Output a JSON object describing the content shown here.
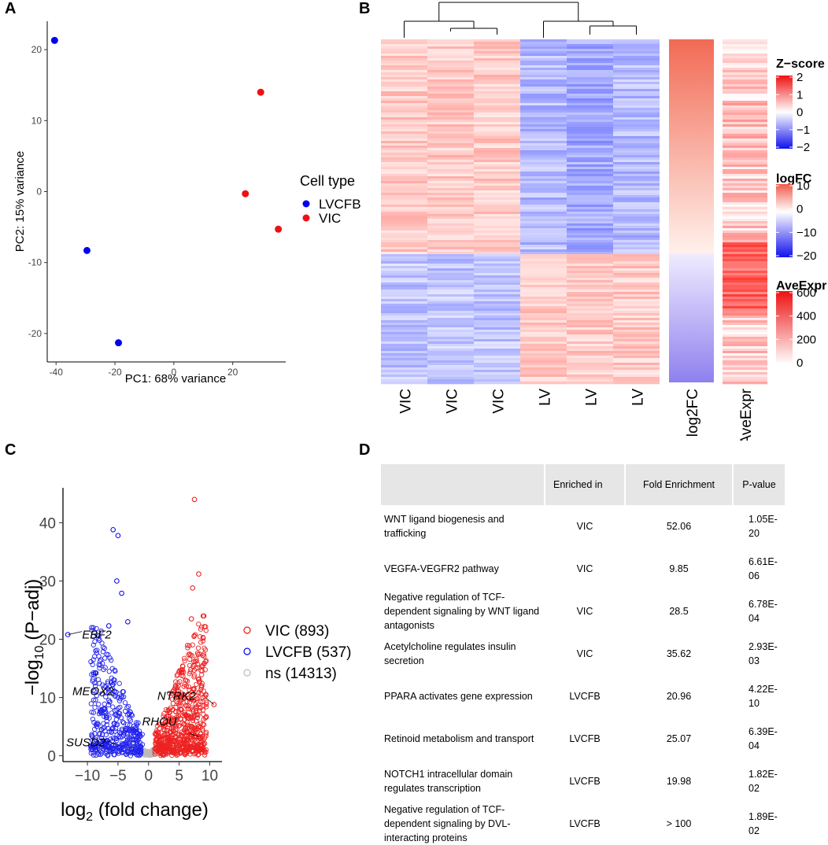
{
  "panel_labels": {
    "a": "A",
    "b": "B",
    "c": "C",
    "d": "D"
  },
  "colors": {
    "lvcfb": "#0000ee",
    "vic": "#ee1111",
    "ns": "#bbbbbb",
    "table_header": "#e6e6e6"
  },
  "chart_data": [
    {
      "id": "A",
      "type": "scatter",
      "title": "",
      "xlabel": "PC1: 68% variance",
      "ylabel": "PC2: 15% variance",
      "xlim": [
        -43,
        38
      ],
      "ylim": [
        -24,
        24
      ],
      "xticks": [
        -40,
        -20,
        0,
        20
      ],
      "yticks": [
        -20,
        -10,
        0,
        10,
        20
      ],
      "legend_title": "Cell type",
      "series": [
        {
          "name": "LVCFB",
          "color": "#0000ee",
          "points": [
            [
              -40.5,
              21.3
            ],
            [
              -29.5,
              -8.3
            ],
            [
              -18.8,
              -21.3
            ]
          ]
        },
        {
          "name": "VIC",
          "color": "#ee1111",
          "points": [
            [
              29.5,
              14.0
            ],
            [
              24.3,
              -0.3
            ],
            [
              35.5,
              -5.3
            ]
          ]
        }
      ]
    },
    {
      "id": "B",
      "type": "heatmap",
      "columns": [
        "VIC",
        "VIC",
        "VIC",
        "LV",
        "LV",
        "LV"
      ],
      "annotation_columns": [
        "log2FC",
        "AveExpr"
      ],
      "legends": [
        {
          "title": "Z−score",
          "ticks": [
            "2",
            "1",
            "0",
            "−1",
            "−2"
          ]
        },
        {
          "title": "logFC",
          "ticks": [
            "10",
            "0",
            "−10",
            "−20"
          ]
        },
        {
          "title": "AveExpr",
          "ticks": [
            "600",
            "400",
            "200",
            "0"
          ]
        }
      ],
      "split_fraction": 0.62
    },
    {
      "id": "C",
      "type": "scatter",
      "subtype": "volcano",
      "xlabel_main": "log",
      "xlabel_sub": "2",
      "xlabel_rest": " (fold change)",
      "ylabel_main": "−log",
      "ylabel_sub": "10",
      "ylabel_rest": " (P−adj)",
      "xlim": [
        -14,
        12
      ],
      "ylim": [
        -1,
        46
      ],
      "xticks": [
        -10,
        -5,
        0,
        5,
        10
      ],
      "xtick_labels": [
        "−10",
        "−5",
        "0",
        "5",
        "10"
      ],
      "yticks": [
        0,
        10,
        20,
        30,
        40
      ],
      "legend": [
        {
          "label": "VIC (893)",
          "color": "#ee1111"
        },
        {
          "label": "LVCFB (537)",
          "color": "#0000ee"
        },
        {
          "label": "ns (14313)",
          "color": "#bbbbbb"
        }
      ],
      "labeled_points": [
        {
          "gene": "EBF2",
          "x": -13.2,
          "y": 20.8,
          "color": "#0000ee"
        },
        {
          "gene": "MEOX2",
          "x": -8.6,
          "y": 14.2,
          "color": "#0000ee"
        },
        {
          "gene": "SUSD2",
          "x": -6.8,
          "y": 2.6,
          "color": "#0000ee"
        },
        {
          "gene": "NTRK2",
          "x": 10.7,
          "y": 8.8,
          "color": "#ee1111"
        },
        {
          "gene": "RHOU",
          "x": 8.2,
          "y": 3.3,
          "color": "#ee1111"
        }
      ],
      "highlight_points": [
        {
          "x": 7.5,
          "y": 44.0,
          "color": "#ee1111"
        },
        {
          "x": 8.2,
          "y": 31.2,
          "color": "#ee1111"
        },
        {
          "x": 7.2,
          "y": 28.8,
          "color": "#ee1111"
        },
        {
          "x": -5.8,
          "y": 38.8,
          "color": "#0000ee"
        },
        {
          "x": -5.0,
          "y": 37.8,
          "color": "#0000ee"
        },
        {
          "x": -5.2,
          "y": 30.0,
          "color": "#0000ee"
        },
        {
          "x": -4.4,
          "y": 27.9,
          "color": "#0000ee"
        },
        {
          "x": -3.4,
          "y": 23.0,
          "color": "#0000ee"
        },
        {
          "x": -6.5,
          "y": 22.3,
          "color": "#0000ee"
        },
        {
          "x": 7.0,
          "y": 23.5,
          "color": "#ee1111"
        }
      ]
    }
  ],
  "table": {
    "headers": [
      "",
      "Enriched in",
      "Fold Enrichment",
      "P-value"
    ],
    "rows": [
      [
        "WNT ligand biogenesis and trafficking",
        "VIC",
        "52.06",
        "1.05E-20"
      ],
      [
        "VEGFA-VEGFR2 pathway",
        "VIC",
        "9.85",
        "6.61E-06"
      ],
      [
        "Negative regulation of TCF-dependent signaling by WNT ligand antagonists",
        "VIC",
        "28.5",
        "6.78E-04"
      ],
      [
        "Acetylcholine regulates insulin secretion",
        "VIC",
        "35.62",
        "2.93E-03"
      ],
      [
        "PPARA activates gene expression",
        "LVCFB",
        "20.96",
        "4.22E-10"
      ],
      [
        "Retinoid metabolism and transport",
        "LVCFB",
        "25.07",
        "6.39E-04"
      ],
      [
        "NOTCH1 intracellular domain regulates transcription",
        "LVCFB",
        "19.98",
        "1.82E-02"
      ],
      [
        "Negative regulation of TCF-dependent signaling by DVL-interacting proteins",
        "LVCFB",
        "> 100",
        "1.89E-02"
      ]
    ]
  }
}
